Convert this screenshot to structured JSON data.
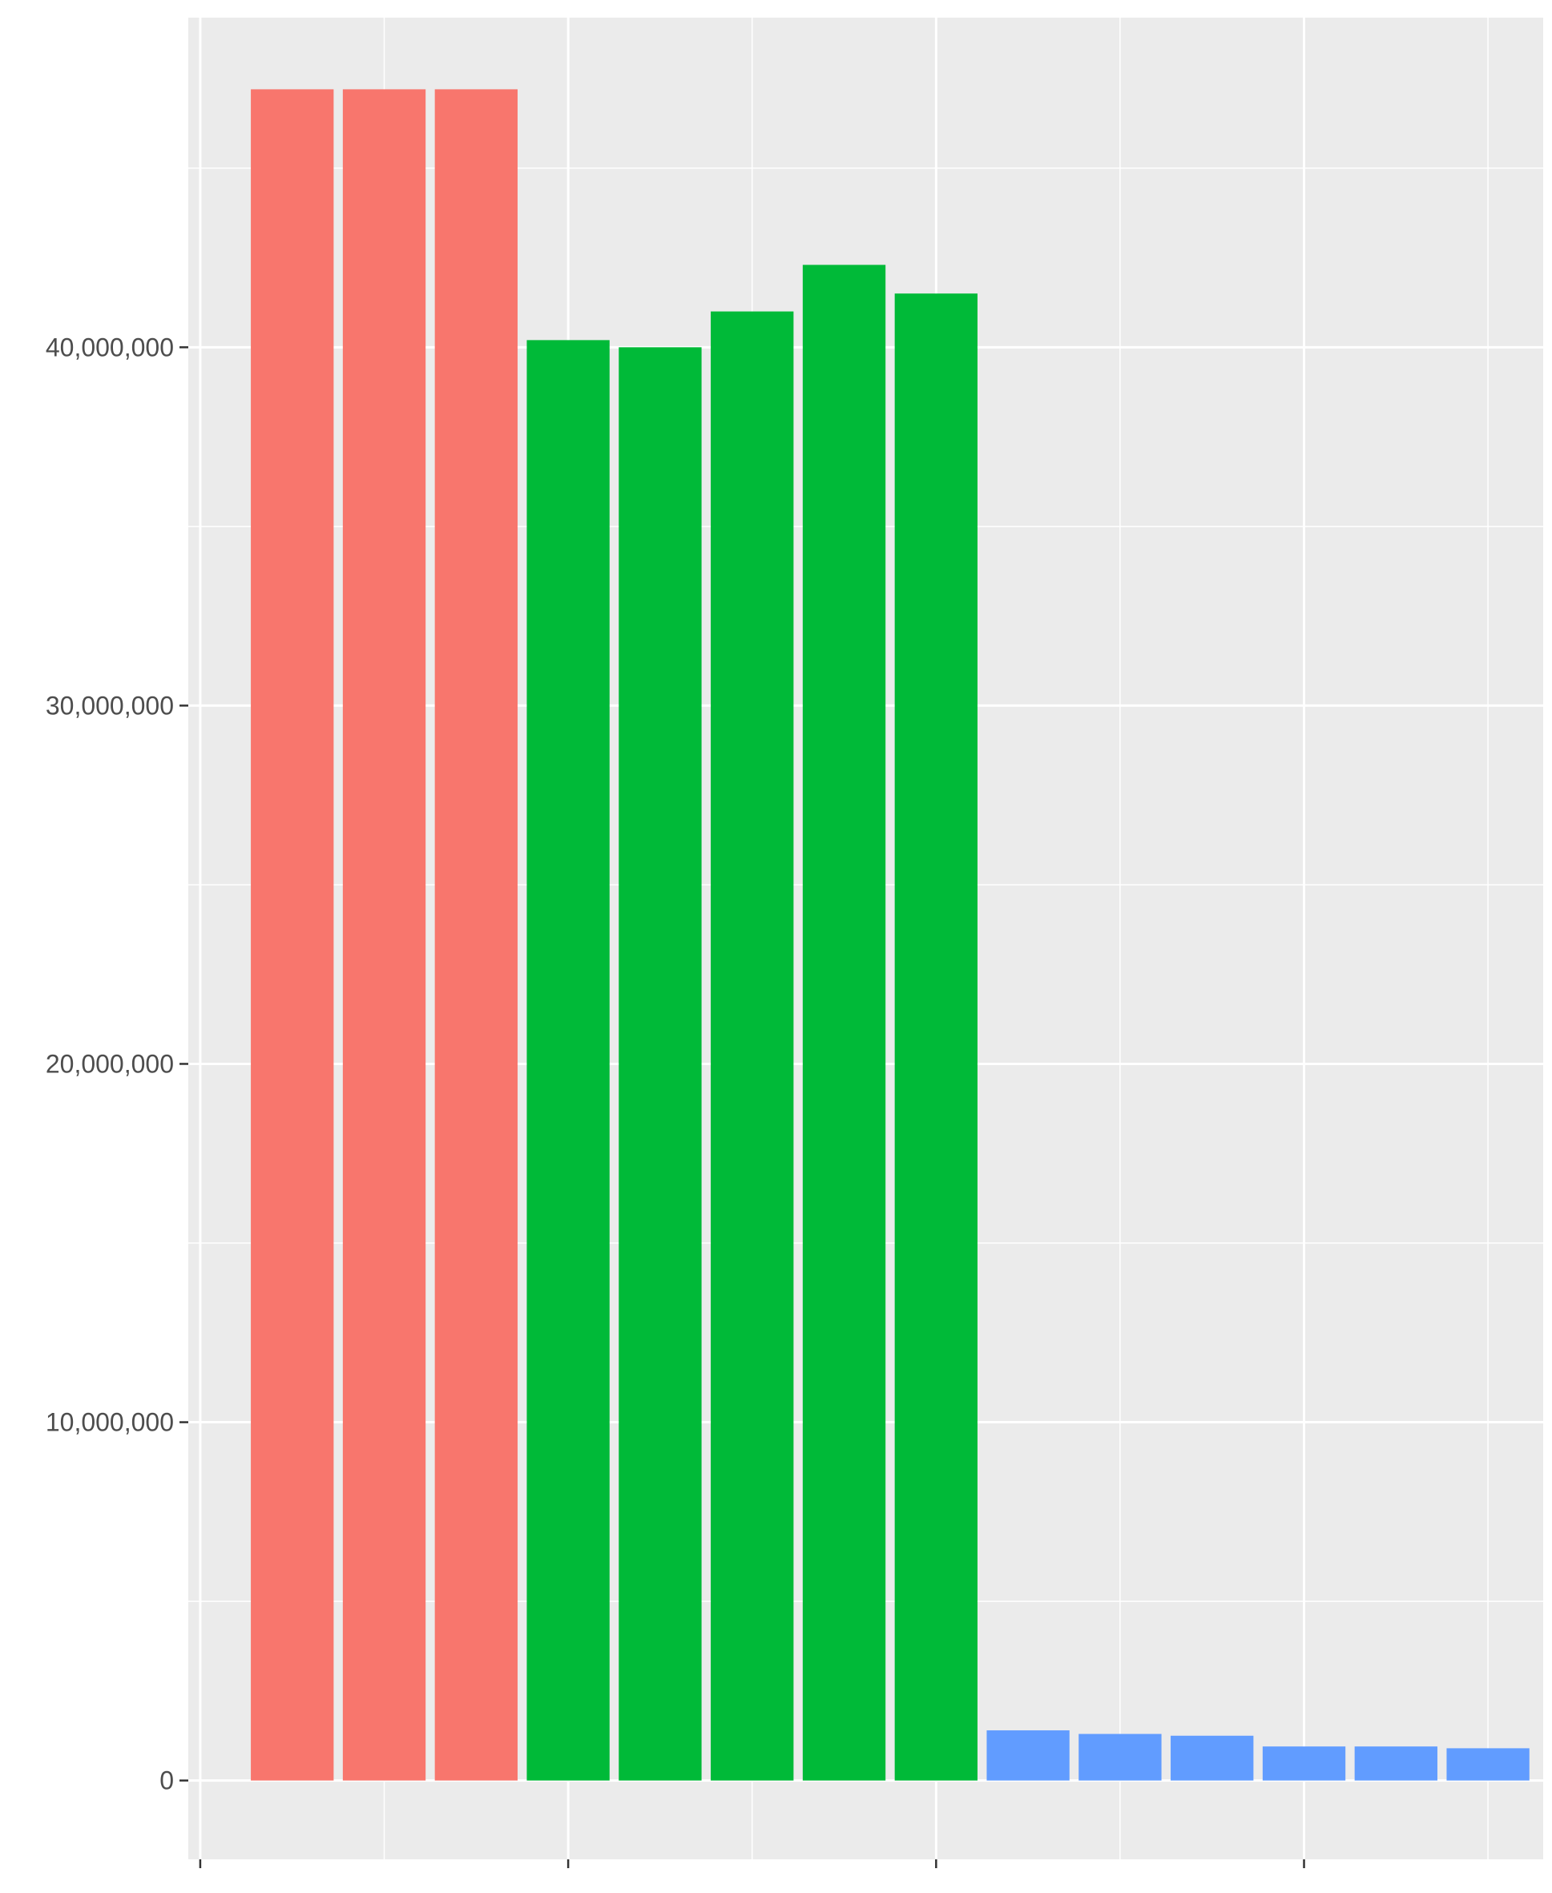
{
  "chart_data": {
    "type": "bar",
    "title": "",
    "xlabel": "",
    "ylabel": "",
    "ylim": [
      -2200000,
      49200000
    ],
    "xlim": [
      -0.13,
      14.6
    ],
    "y_ticks": [
      {
        "value": 0,
        "label": "0"
      },
      {
        "value": 10000000,
        "label": "10,000,000"
      },
      {
        "value": 20000000,
        "label": "20,000,000"
      },
      {
        "value": 30000000,
        "label": "30,000,000"
      },
      {
        "value": 40000000,
        "label": "40,000,000"
      }
    ],
    "y_minor_ticks": [
      5000000,
      15000000,
      25000000,
      35000000,
      45000000
    ],
    "x_ticks": [
      0,
      4,
      8,
      12
    ],
    "x_minor_ticks": [
      2,
      6,
      10,
      14
    ],
    "grid": true,
    "legend": "none",
    "series": [
      {
        "color": "#F8766D",
        "x": [
          1,
          2,
          3
        ],
        "values": [
          47200000,
          47200000,
          47200000
        ]
      },
      {
        "color": "#00BA38",
        "x": [
          4,
          5,
          6,
          7,
          8
        ],
        "values": [
          40200000,
          40000000,
          41000000,
          42300000,
          41500000
        ]
      },
      {
        "color": "#619CFF",
        "x": [
          9,
          10,
          11,
          12,
          13,
          14
        ],
        "values": [
          1400000,
          1300000,
          1250000,
          950000,
          950000,
          900000
        ]
      }
    ],
    "colors": {
      "panel": "#EBEBEB",
      "grid": "#FFFFFF",
      "axis_text": "#4D4D4D",
      "tick": "#333333"
    }
  }
}
